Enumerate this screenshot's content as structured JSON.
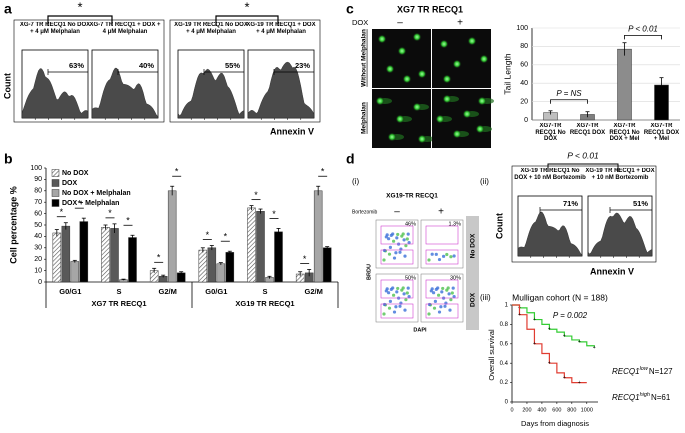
{
  "panel_labels": [
    "a",
    "b",
    "c",
    "d"
  ],
  "panel_a": {
    "significance": [
      "*",
      "*"
    ],
    "y_label": "Count",
    "x_label": "Annexin V",
    "samples": [
      {
        "label": "XG-7 TR RECQ1 No DOX + 4 μM Melphalan",
        "percent": "63%"
      },
      {
        "label": "XG-7 TR RECQ1 + DOX + 4 μM Melphalan",
        "percent": "40%"
      },
      {
        "label": "XG-19 TR RECQ1 No DOX + 4 μM Melphalan",
        "percent": "55%"
      },
      {
        "label": "XG-19 TR RECQ1 + DOX + 4 μM Melphalan",
        "percent": "23%"
      }
    ]
  },
  "panel_c_images": {
    "title": "XG7 TR RECQ1",
    "dox_label": "DOX",
    "dox_off": "–",
    "dox_on": "+",
    "rows": [
      "Without Melphalan",
      "Melphalan"
    ]
  },
  "panel_d": {
    "sub_labels": [
      "(i)",
      "(ii)",
      "(iii)"
    ],
    "i": {
      "title": "XG19-TR RECQ1",
      "treatment": "Bortezomib",
      "off": "–",
      "on": "+",
      "rows": [
        "No DOX",
        "DOX"
      ],
      "y_label": "BRDU",
      "x_label": "DAPI",
      "percents": [
        "46%",
        "1.3%",
        "50%",
        "30%"
      ]
    },
    "ii": {
      "significance": "P < 0.01",
      "y_label": "Count",
      "x_label": "Annexin V",
      "samples": [
        {
          "label": "XG-19 TR RECQ1 No DOX + 10 nM Bortezomib",
          "percent": "71%"
        },
        {
          "label": "XG-19 TR RECQ1 + DOX + 10 nM Bortezomib",
          "percent": "51%"
        }
      ]
    }
  },
  "chart_data": [
    {
      "type": "bar",
      "y_label": "Cell percentage %",
      "ylim": [
        0,
        100
      ],
      "yticks": [
        0,
        10,
        20,
        30,
        40,
        50,
        60,
        70,
        80,
        90,
        100
      ],
      "categories": [
        "G0/G1",
        "S",
        "G2/M",
        "G0/G1",
        "S",
        "G2/M"
      ],
      "group_labels": [
        "XG7 TR RECQ1",
        "XG19 TR RECQ1"
      ],
      "legend": "upper left",
      "series": [
        {
          "name": "No DOX",
          "color": "#ffffff",
          "pattern": "hatched",
          "values": [
            43,
            48,
            10,
            28,
            65,
            7
          ],
          "errors": [
            3,
            2,
            2,
            2,
            2,
            2
          ]
        },
        {
          "name": "DOX",
          "color": "#595959",
          "values": [
            49,
            47,
            5,
            30,
            62,
            8
          ],
          "errors": [
            3,
            4,
            1,
            2,
            2,
            3
          ]
        },
        {
          "name": "No DOX + Melphalan",
          "color": "#a6a6a6",
          "values": [
            18,
            2,
            80,
            16,
            4,
            80
          ],
          "errors": [
            1,
            0.5,
            4,
            1,
            1,
            4
          ]
        },
        {
          "name": "DOX + Melphalan",
          "color": "#000000",
          "values": [
            53,
            39,
            8,
            26,
            44,
            30
          ],
          "errors": [
            3,
            2,
            1,
            1,
            3,
            1
          ]
        }
      ],
      "significance_labels": [
        "*",
        "*",
        "*",
        "*",
        "*",
        "*",
        "*",
        "*",
        "*",
        "*",
        "*",
        "*"
      ]
    },
    {
      "type": "bar",
      "y_label": "Tail Length",
      "ylim": [
        0,
        100
      ],
      "yticks": [
        0,
        20,
        40,
        60,
        80,
        100
      ],
      "categories": [
        "XG7-TR RECQ1 No DOX",
        "XG7-TR RECQ1 DOX",
        "XG7-TR RECQ1 No DOX + Mel",
        "XG7-TR RECQ1 DOX + Mel"
      ],
      "values": [
        8,
        6,
        77,
        38
      ],
      "errors": [
        2,
        3,
        7,
        8
      ],
      "colors": [
        "#bfbfbf",
        "#7f7f7f",
        "#8c8c8c",
        "#000000"
      ],
      "annotations": [
        "P = NS",
        "P < 0.01"
      ]
    },
    {
      "type": "step",
      "title": "Mulligan cohort (N = 188)",
      "annotation": "P = 0.002",
      "x_label": "Days from diagnosis",
      "y_label": "Overall survival",
      "xlim": [
        0,
        1150
      ],
      "xticks": [
        0,
        200,
        400,
        600,
        800,
        1000
      ],
      "ylim": [
        0,
        1
      ],
      "yticks": [
        0,
        0.2,
        0.4,
        0.6,
        0.8,
        1
      ],
      "series": [
        {
          "name": "RECQ1",
          "name_sup": "low",
          "count": "N=127",
          "color": "#33cc33",
          "x": [
            0,
            100,
            200,
            300,
            400,
            500,
            600,
            700,
            800,
            900,
            1000,
            1100
          ],
          "values": [
            1,
            0.97,
            0.92,
            0.85,
            0.8,
            0.75,
            0.72,
            0.68,
            0.64,
            0.62,
            0.58,
            0.56
          ]
        },
        {
          "name": "RECQ1",
          "name_sup": "high",
          "count": "N=61",
          "color": "#e03c31",
          "x": [
            0,
            100,
            200,
            300,
            400,
            500,
            600,
            700,
            800,
            900,
            1000
          ],
          "values": [
            1,
            0.9,
            0.75,
            0.6,
            0.5,
            0.4,
            0.3,
            0.25,
            0.2,
            0.2,
            0.2
          ]
        }
      ]
    }
  ]
}
